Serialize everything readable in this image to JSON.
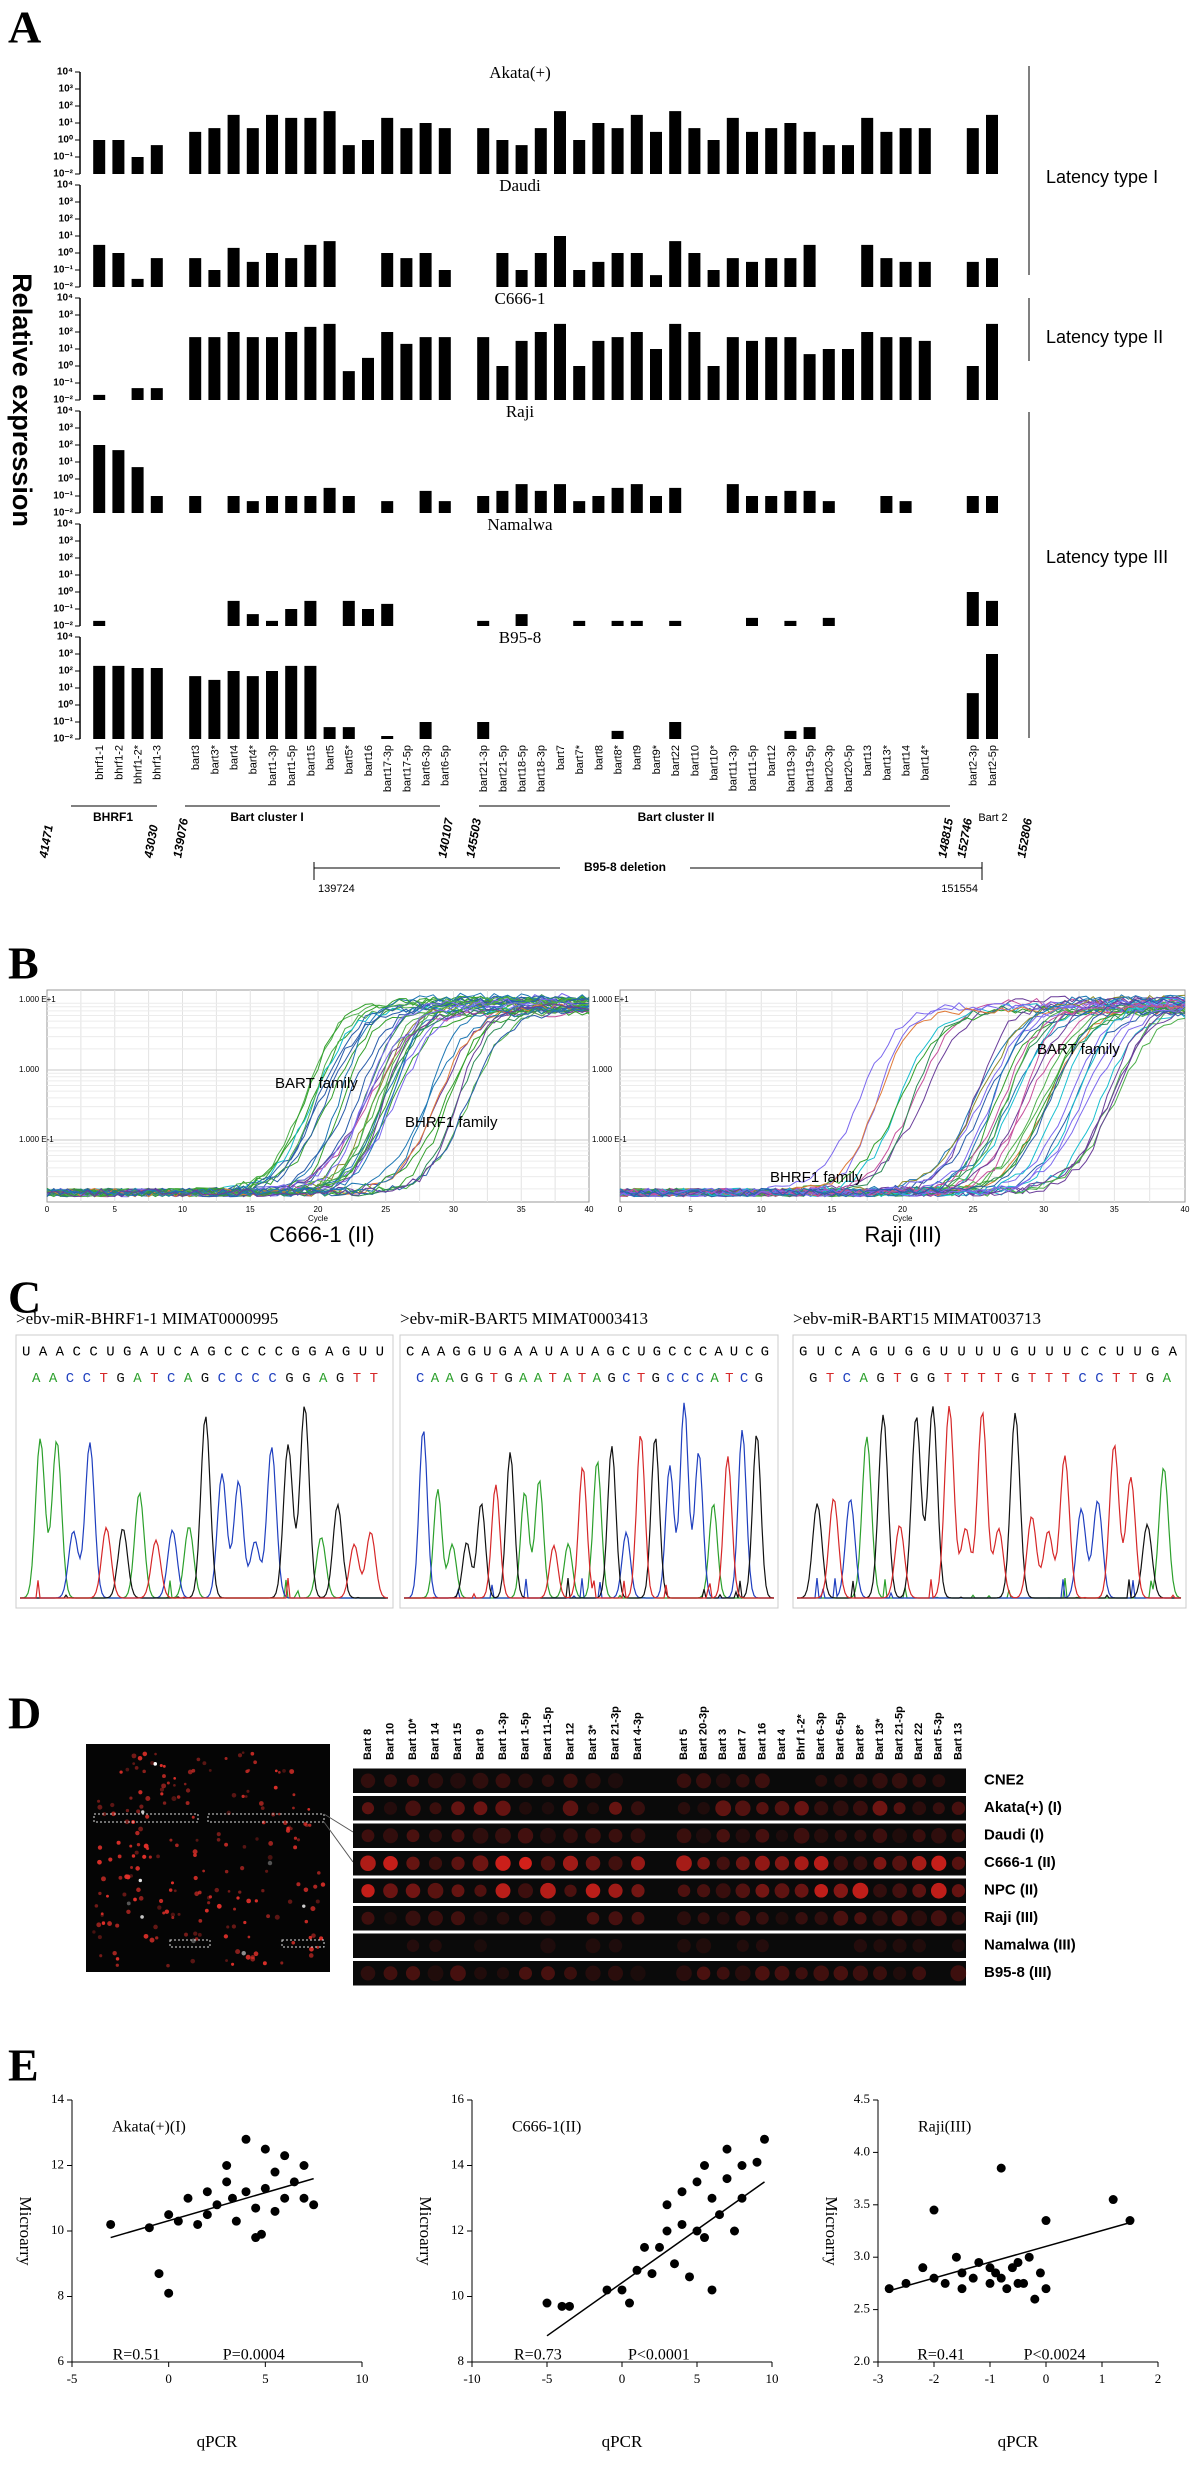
{
  "panel_labels": [
    "A",
    "B",
    "C",
    "D",
    "E"
  ],
  "panel_a": {
    "y_label": "Relative expression",
    "latency_labels": [
      "Latency type I",
      "Latency type II",
      "Latency type III"
    ],
    "genome_labels": [
      "41471",
      "BHRF1",
      "43030",
      "139076",
      "Bart cluster I",
      "140107",
      "145503",
      "Bart cluster II",
      "148815",
      "152746",
      "Bart 2",
      "152806"
    ],
    "deletion": {
      "label": "B95-8 deletion",
      "start": "139724",
      "end": "151554"
    }
  },
  "chart_data": [
    {
      "type": "bar",
      "title": "Akata(+)",
      "color": "#000000",
      "log_scale": true,
      "ylim": [
        0.01,
        10000
      ],
      "yticks": [
        {
          "value": 0.01,
          "label": "10⁻²"
        },
        {
          "value": 0.1,
          "label": "10⁻¹"
        },
        {
          "value": 1,
          "label": "10⁰"
        },
        {
          "value": 10,
          "label": "10¹"
        },
        {
          "value": 100,
          "label": "10²"
        },
        {
          "value": 1000,
          "label": "10³"
        },
        {
          "value": 10000,
          "label": "10⁴"
        }
      ],
      "values": [
        1,
        1,
        0.1,
        0.5,
        3,
        5,
        30,
        5,
        30,
        20,
        20,
        50,
        0.5,
        1,
        20,
        5,
        10,
        5,
        5,
        1,
        0.5,
        5,
        50,
        1,
        10,
        5,
        30,
        3,
        50,
        5,
        1,
        20,
        3,
        5,
        10,
        3,
        0.5,
        0.5,
        20,
        3,
        5,
        5,
        5,
        30
      ]
    },
    {
      "type": "bar",
      "title": "Daudi",
      "color": "#000000",
      "log_scale": true,
      "ylim": [
        0.01,
        10000
      ],
      "yticks": [
        {
          "value": 0.01,
          "label": "10⁻²"
        },
        {
          "value": 0.1,
          "label": "10⁻¹"
        },
        {
          "value": 1,
          "label": "10⁰"
        },
        {
          "value": 10,
          "label": "10¹"
        },
        {
          "value": 100,
          "label": "10²"
        },
        {
          "value": 1000,
          "label": "10³"
        },
        {
          "value": 10000,
          "label": "10⁴"
        }
      ],
      "values": [
        3,
        1,
        0.03,
        0.5,
        0.5,
        0.1,
        2,
        0.3,
        1,
        0.5,
        3,
        5,
        0.01,
        0.01,
        1,
        0.5,
        1,
        0.1,
        0.01,
        1,
        0.1,
        1,
        10,
        0.1,
        0.3,
        1,
        1,
        0.05,
        5,
        1,
        0.1,
        0.5,
        0.3,
        0.5,
        0.5,
        3,
        0.01,
        0.01,
        3,
        0.5,
        0.3,
        0.3,
        0.3,
        0.5
      ]
    },
    {
      "type": "bar",
      "title": "C666-1",
      "color": "#000000",
      "log_scale": true,
      "ylim": [
        0.01,
        10000
      ],
      "yticks": [
        {
          "value": 0.01,
          "label": "10⁻²"
        },
        {
          "value": 0.1,
          "label": "10⁻¹"
        },
        {
          "value": 1,
          "label": "10⁰"
        },
        {
          "value": 10,
          "label": "10¹"
        },
        {
          "value": 100,
          "label": "10²"
        },
        {
          "value": 1000,
          "label": "10³"
        },
        {
          "value": 10000,
          "label": "10⁴"
        }
      ],
      "values": [
        0.02,
        0.01,
        0.05,
        0.05,
        50,
        50,
        100,
        50,
        50,
        100,
        200,
        300,
        0.5,
        3,
        100,
        20,
        50,
        50,
        50,
        1,
        30,
        100,
        300,
        1,
        30,
        50,
        100,
        10,
        300,
        100,
        1,
        50,
        30,
        50,
        50,
        5,
        10,
        10,
        100,
        50,
        50,
        30,
        1,
        300
      ]
    },
    {
      "type": "bar",
      "title": "Raji",
      "color": "#000000",
      "log_scale": true,
      "ylim": [
        0.01,
        10000
      ],
      "yticks": [
        {
          "value": 0.01,
          "label": "10⁻²"
        },
        {
          "value": 0.1,
          "label": "10⁻¹"
        },
        {
          "value": 1,
          "label": "10⁰"
        },
        {
          "value": 10,
          "label": "10¹"
        },
        {
          "value": 100,
          "label": "10²"
        },
        {
          "value": 1000,
          "label": "10³"
        },
        {
          "value": 10000,
          "label": "10⁴"
        }
      ],
      "values": [
        100,
        50,
        5,
        0.1,
        0.1,
        0.01,
        0.1,
        0.05,
        0.1,
        0.1,
        0.1,
        0.3,
        0.1,
        0.01,
        0.05,
        0.01,
        0.2,
        0.05,
        0.1,
        0.2,
        0.5,
        0.2,
        0.5,
        0.05,
        0.1,
        0.3,
        0.5,
        0.1,
        0.3,
        0.01,
        0.01,
        0.5,
        0.1,
        0.1,
        0.2,
        0.2,
        0.05,
        0.01,
        0.01,
        0.1,
        0.05,
        0.01,
        0.1,
        0.1
      ]
    },
    {
      "type": "bar",
      "title": "Namalwa",
      "color": "#000000",
      "log_scale": true,
      "ylim": [
        0.01,
        10000
      ],
      "yticks": [
        {
          "value": 0.01,
          "label": "10⁻²"
        },
        {
          "value": 0.1,
          "label": "10⁻¹"
        },
        {
          "value": 1,
          "label": "10⁰"
        },
        {
          "value": 10,
          "label": "10¹"
        },
        {
          "value": 100,
          "label": "10²"
        },
        {
          "value": 1000,
          "label": "10³"
        },
        {
          "value": 10000,
          "label": "10⁴"
        }
      ],
      "values": [
        0.02,
        0.01,
        0.01,
        0.01,
        0.01,
        0.01,
        0.3,
        0.05,
        0.02,
        0.1,
        0.3,
        0.01,
        0.3,
        0.1,
        0.2,
        0.01,
        0.01,
        0.01,
        0.02,
        0.01,
        0.05,
        0.01,
        0.01,
        0.02,
        0.01,
        0.02,
        0.02,
        0.01,
        0.02,
        0.01,
        0.01,
        0.01,
        0.03,
        0.01,
        0.02,
        0.01,
        0.03,
        0.01,
        0.01,
        0.01,
        0.01,
        0.01,
        1,
        0.3
      ]
    },
    {
      "type": "bar",
      "title": "B95-8",
      "color": "#000000",
      "log_scale": true,
      "ylim": [
        0.01,
        10000
      ],
      "yticks": [
        {
          "value": 0.01,
          "label": "10⁻²"
        },
        {
          "value": 0.1,
          "label": "10⁻¹"
        },
        {
          "value": 1,
          "label": "10⁰"
        },
        {
          "value": 10,
          "label": "10¹"
        },
        {
          "value": 100,
          "label": "10²"
        },
        {
          "value": 1000,
          "label": "10³"
        },
        {
          "value": 10000,
          "label": "10⁴"
        }
      ],
      "categories": [
        "bhrf1-1",
        "bhrf1-2",
        "bhrf1-2*",
        "bhrf1-3",
        "bart3",
        "bart3*",
        "bart4",
        "bart4*",
        "bart1-3p",
        "bart1-5p",
        "bart15",
        "bart5",
        "bart5*",
        "bart16",
        "bart17-3p",
        "bart17-5p",
        "bart6-3p",
        "bart6-5p",
        "bart21-3p",
        "bart21-5p",
        "bart18-5p",
        "bart18-3p",
        "bart7",
        "bart7*",
        "bart8",
        "bart8*",
        "bart9",
        "bart9*",
        "bart22",
        "bart10",
        "bart10*",
        "bart11-3p",
        "bart11-5p",
        "bart12",
        "bart19-3p",
        "bart19-5p",
        "bart20-3p",
        "bart20-5p",
        "bart13",
        "bart13*",
        "bart14",
        "bart14*",
        "bart2-3p",
        "bart2-5p"
      ],
      "values": [
        200,
        200,
        150,
        150,
        50,
        30,
        100,
        50,
        100,
        200,
        200,
        0.05,
        0.05,
        0.01,
        0.015,
        0.01,
        0.1,
        0.01,
        0.1,
        0.01,
        0.01,
        0.01,
        0.01,
        0.01,
        0.01,
        0.03,
        0.01,
        0.01,
        0.1,
        0.01,
        0.01,
        0.01,
        0.01,
        0.01,
        0.03,
        0.05,
        0.01,
        0.01,
        0.01,
        0.01,
        0.01,
        0.01,
        5,
        1000
      ]
    },
    {
      "type": "scatter",
      "title": "Akata(+)(I)",
      "x_label": "qPCR",
      "y_label": "Microarry",
      "color": "#000000",
      "xlim": [
        -5,
        10
      ],
      "xticks": [
        -5,
        0,
        5,
        10
      ],
      "ylim": [
        6,
        14
      ],
      "yticks": [
        6,
        8,
        10,
        12,
        14
      ],
      "annotations": [
        "R=0.51",
        "P=0.0004"
      ],
      "x": [
        -3,
        -1,
        -0.5,
        0,
        0,
        0.5,
        1,
        1.5,
        2,
        2,
        2.5,
        3,
        3,
        3.3,
        3.5,
        4,
        4,
        4.5,
        4.5,
        5,
        5,
        5.5,
        5.5,
        6,
        6,
        6.5,
        7,
        7,
        7.5,
        4.8
      ],
      "y": [
        10.2,
        10.1,
        8.7,
        8.1,
        10.5,
        10.3,
        11,
        10.2,
        11.2,
        10.5,
        10.8,
        11.5,
        12,
        11,
        10.3,
        12.8,
        11.2,
        10.7,
        9.8,
        11.3,
        12.5,
        10.6,
        11.8,
        11,
        12.3,
        11.5,
        12,
        11,
        10.8,
        9.9
      ],
      "fit": {
        "x": [
          -3,
          7.5
        ],
        "y": [
          9.8,
          11.6
        ]
      }
    },
    {
      "type": "scatter",
      "title": "C666-1(II)",
      "x_label": "qPCR",
      "y_label": "Microarry",
      "color": "#000000",
      "xlim": [
        -10,
        10
      ],
      "xticks": [
        -10,
        -5,
        0,
        5,
        10
      ],
      "ylim": [
        8,
        16
      ],
      "yticks": [
        8,
        10,
        12,
        14,
        16
      ],
      "annotations": [
        "R=0.73",
        "P<0.0001"
      ],
      "x": [
        -5,
        -4,
        -3.5,
        -1,
        0,
        0.5,
        1,
        1.5,
        2,
        2.5,
        3,
        3,
        3.5,
        4,
        4,
        4.5,
        5,
        5,
        5.5,
        5.5,
        6,
        6,
        6.5,
        7,
        7,
        7.5,
        8,
        8,
        9,
        9.5
      ],
      "y": [
        9.8,
        9.7,
        9.7,
        10.2,
        10.2,
        9.8,
        10.8,
        11.5,
        10.7,
        11.5,
        12,
        12.8,
        11,
        13.2,
        12.2,
        10.6,
        12,
        13.5,
        11.8,
        14,
        13,
        10.2,
        12.5,
        14.5,
        13.6,
        12,
        13,
        14,
        14.1,
        14.8
      ],
      "fit": {
        "x": [
          -5,
          9.5
        ],
        "y": [
          8.8,
          13.5
        ]
      }
    },
    {
      "type": "scatter",
      "title": "Raji(III)",
      "x_label": "qPCR",
      "y_label": "Microarry",
      "color": "#000000",
      "xlim": [
        -3,
        2
      ],
      "xticks": [
        -3,
        -2,
        -1,
        0,
        1,
        2
      ],
      "ylim": [
        2,
        4.5
      ],
      "yticks": [
        {
          "value": 2,
          "label": "2.0"
        },
        2.5,
        {
          "value": 3,
          "label": "3.0"
        },
        3.5,
        {
          "value": 4,
          "label": "4.0"
        },
        4.5
      ],
      "annotations": [
        "R=0.41",
        "P<0.0024"
      ],
      "x": [
        -2.8,
        -2.5,
        -2.2,
        -2,
        -2,
        -1.8,
        -1.5,
        -1.5,
        -1.3,
        -1.2,
        -1,
        -1,
        -0.8,
        -0.8,
        -0.7,
        -0.6,
        -0.5,
        -0.5,
        -0.3,
        -0.2,
        0,
        0,
        -0.1,
        1.2,
        1.5,
        -1.6,
        -0.9,
        -0.4
      ],
      "y": [
        2.7,
        2.75,
        2.9,
        3.45,
        2.8,
        2.75,
        2.7,
        2.85,
        2.8,
        2.95,
        2.75,
        2.9,
        2.8,
        3.85,
        2.7,
        2.9,
        2.75,
        2.95,
        3.0,
        2.6,
        3.35,
        2.7,
        2.85,
        3.55,
        3.35,
        3.0,
        2.85,
        2.75
      ],
      "fit": {
        "x": [
          -2.8,
          1.5
        ],
        "y": [
          2.68,
          3.33
        ]
      }
    }
  ],
  "panel_b": [
    {
      "y_tick_labels": [
        "1.000 E+1",
        "1.000",
        "1.000 E-1"
      ],
      "x_tick_labels": [
        "0",
        "5",
        "10",
        "15",
        "20",
        "25",
        "30",
        "35",
        "40"
      ],
      "x_label": "Cycle",
      "annotations": [
        "BART  family",
        "BHRF1  family"
      ],
      "caption": "C666-1  (II)"
    },
    {
      "y_tick_labels": [
        "1.000 E+1",
        "1.000",
        "1.000 E-1"
      ],
      "x_tick_labels": [
        "0",
        "5",
        "10",
        "15",
        "20",
        "25",
        "30",
        "35",
        "40"
      ],
      "x_label": "Cycle",
      "annotations": [
        "BHRF1  family",
        "BART  family"
      ],
      "caption": "Raji  (III)"
    }
  ],
  "panel_c": [
    {
      "header": ">ebv-miR-BHRF1-1 MIMAT0000995",
      "reference": "UAACCUGAUCAGCCCCGGAGUU",
      "called": "AACCTGATCAGCCCCGGAGTT"
    },
    {
      "header": ">ebv-miR-BART5 MIMAT0003413",
      "reference": "CAAGGUGAAUAUAGCUGCCCAUCG",
      "called": "CAAGGTGAATATAGCTGCCCATCG"
    },
    {
      "header": ">ebv-miR-BART15 MIMAT003713",
      "reference": "GUCAGUGGUUUUGUUUCCUUGA",
      "called": "GTCAGTGGTTTTGTTTCCTTGA"
    }
  ],
  "panel_d": {
    "columns_left": [
      "Bart 8",
      "Bart 10",
      "Bart 10*",
      "Bart 14",
      "Bart 15",
      "Bart 9",
      "Bart 1-3p",
      "Bart 1-5p",
      "Bart 11-5p",
      "Bart 12",
      "Bart 3*",
      "Bart 21-3p",
      "Bart 4-3p"
    ],
    "columns_right": [
      "Bart 5",
      "Bart 20-3p",
      "Bart 3",
      "Bart 7",
      "Bart 16",
      "Bart 4",
      "Bhrf 1-2*",
      "Bart 6-3p",
      "Bart 6-5p",
      "Bart 8*",
      "Bart 13*",
      "Bart 21-5p",
      "Bart 22",
      "Bart 5-3p",
      "Bart 13"
    ],
    "rows": [
      "CNE2",
      "Akata(+) (I)",
      "Daudi (I)",
      "C666-1 (II)",
      "NPC (II)",
      "Raji (III)",
      "Namalwa (III)",
      "B95-8 (III)"
    ]
  }
}
